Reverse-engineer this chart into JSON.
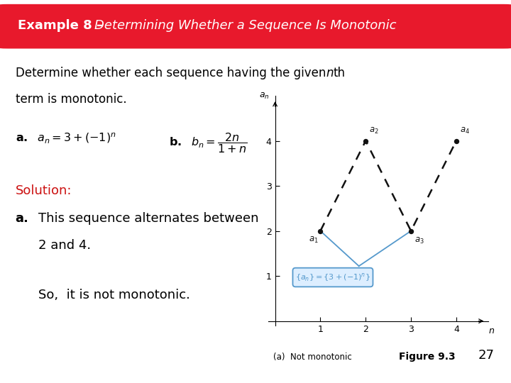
{
  "title": "Example 8 – Determining Whether a Sequence Is Monotonic",
  "title_bg": "#e8192c",
  "title_color": "#ffffff",
  "bg_color": "#ffffff",
  "text_color": "#000000",
  "solution_color": "#cc1111",
  "figure_caption": "(a)  Not monotonic",
  "figure_label": "Figure 9.3",
  "page_number": "27",
  "plot_points_x": [
    1,
    2,
    3,
    4
  ],
  "plot_points_y": [
    2,
    4,
    2,
    4
  ],
  "plot_xlim": [
    -0.15,
    4.7
  ],
  "plot_ylim": [
    -0.1,
    5.0
  ],
  "plot_xticks": [
    1,
    2,
    3,
    4
  ],
  "plot_yticks": [
    1,
    2,
    3,
    4
  ],
  "dashed_color": "#111111",
  "highlight_color": "#5599cc",
  "box_color": "#5599cc",
  "box_bg": "#ddeeff"
}
